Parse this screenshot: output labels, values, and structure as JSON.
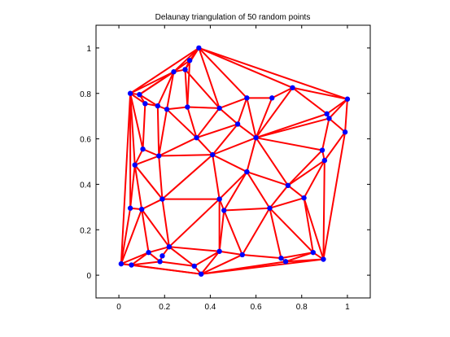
{
  "chart_data": {
    "type": "scatter",
    "title": "Delaunay triangulation of 50 random points",
    "xlabel": "",
    "ylabel": "",
    "xlim": [
      -0.1,
      1.1
    ],
    "ylim": [
      -0.1,
      1.1
    ],
    "xticks": [
      "0",
      "0.2",
      "0.4",
      "0.6",
      "0.8",
      "1"
    ],
    "yticks": [
      "0",
      "0.2",
      "0.4",
      "0.6",
      "0.8",
      "1"
    ],
    "xtick_values": [
      0,
      0.2,
      0.4,
      0.6,
      0.8,
      1
    ],
    "ytick_values": [
      0,
      0.2,
      0.4,
      0.6,
      0.8,
      1
    ],
    "grid": false,
    "colors": {
      "edges": "#ff0000",
      "points": "#0000ff",
      "axes": "#000000"
    },
    "points": [
      [
        0.35,
        1.0
      ],
      [
        0.31,
        0.945
      ],
      [
        0.24,
        0.895
      ],
      [
        0.29,
        0.905
      ],
      [
        0.05,
        0.8
      ],
      [
        0.09,
        0.795
      ],
      [
        0.115,
        0.755
      ],
      [
        0.17,
        0.745
      ],
      [
        0.21,
        0.73
      ],
      [
        0.3,
        0.74
      ],
      [
        0.44,
        0.735
      ],
      [
        0.56,
        0.78
      ],
      [
        0.67,
        0.78
      ],
      [
        0.76,
        0.825
      ],
      [
        0.91,
        0.71
      ],
      [
        0.92,
        0.69
      ],
      [
        1.0,
        0.775
      ],
      [
        0.99,
        0.63
      ],
      [
        0.52,
        0.665
      ],
      [
        0.6,
        0.605
      ],
      [
        0.34,
        0.605
      ],
      [
        0.105,
        0.555
      ],
      [
        0.175,
        0.525
      ],
      [
        0.41,
        0.53
      ],
      [
        0.89,
        0.55
      ],
      [
        0.9,
        0.505
      ],
      [
        0.07,
        0.485
      ],
      [
        0.56,
        0.455
      ],
      [
        0.74,
        0.395
      ],
      [
        0.19,
        0.335
      ],
      [
        0.44,
        0.335
      ],
      [
        0.05,
        0.295
      ],
      [
        0.1,
        0.29
      ],
      [
        0.46,
        0.285
      ],
      [
        0.66,
        0.295
      ],
      [
        0.81,
        0.34
      ],
      [
        0.13,
        0.1
      ],
      [
        0.22,
        0.125
      ],
      [
        0.19,
        0.085
      ],
      [
        0.18,
        0.06
      ],
      [
        0.44,
        0.105
      ],
      [
        0.54,
        0.09
      ],
      [
        0.71,
        0.075
      ],
      [
        0.73,
        0.06
      ],
      [
        0.85,
        0.1
      ],
      [
        0.895,
        0.07
      ],
      [
        0.01,
        0.05
      ],
      [
        0.055,
        0.045
      ],
      [
        0.33,
        0.04
      ],
      [
        0.36,
        0.005
      ]
    ],
    "edges": [
      [
        0,
        1
      ],
      [
        0,
        3
      ],
      [
        0,
        2
      ],
      [
        0,
        10
      ],
      [
        0,
        11
      ],
      [
        0,
        13
      ],
      [
        0,
        16
      ],
      [
        0,
        4
      ],
      [
        1,
        3
      ],
      [
        1,
        2
      ],
      [
        1,
        9
      ],
      [
        2,
        3
      ],
      [
        3,
        9
      ],
      [
        3,
        10
      ],
      [
        2,
        8
      ],
      [
        2,
        7
      ],
      [
        2,
        4
      ],
      [
        2,
        5
      ],
      [
        4,
        5
      ],
      [
        4,
        6
      ],
      [
        4,
        21
      ],
      [
        4,
        26
      ],
      [
        4,
        31
      ],
      [
        4,
        46
      ],
      [
        5,
        6
      ],
      [
        5,
        7
      ],
      [
        5,
        2
      ],
      [
        6,
        7
      ],
      [
        6,
        21
      ],
      [
        7,
        8
      ],
      [
        7,
        22
      ],
      [
        8,
        9
      ],
      [
        8,
        20
      ],
      [
        8,
        22
      ],
      [
        9,
        10
      ],
      [
        9,
        20
      ],
      [
        10,
        11
      ],
      [
        10,
        18
      ],
      [
        10,
        20
      ],
      [
        11,
        12
      ],
      [
        11,
        18
      ],
      [
        11,
        19
      ],
      [
        12,
        13
      ],
      [
        12,
        19
      ],
      [
        13,
        14
      ],
      [
        13,
        16
      ],
      [
        13,
        19
      ],
      [
        14,
        15
      ],
      [
        14,
        16
      ],
      [
        14,
        19
      ],
      [
        15,
        16
      ],
      [
        15,
        17
      ],
      [
        15,
        24
      ],
      [
        15,
        19
      ],
      [
        16,
        17
      ],
      [
        17,
        25
      ],
      [
        17,
        45
      ],
      [
        18,
        19
      ],
      [
        18,
        20
      ],
      [
        18,
        23
      ],
      [
        19,
        23
      ],
      [
        19,
        24
      ],
      [
        19,
        27
      ],
      [
        19,
        28
      ],
      [
        20,
        22
      ],
      [
        20,
        23
      ],
      [
        21,
        22
      ],
      [
        21,
        26
      ],
      [
        22,
        23
      ],
      [
        22,
        26
      ],
      [
        22,
        29
      ],
      [
        23,
        27
      ],
      [
        23,
        29
      ],
      [
        23,
        30
      ],
      [
        24,
        25
      ],
      [
        24,
        28
      ],
      [
        25,
        28
      ],
      [
        25,
        35
      ],
      [
        25,
        45
      ],
      [
        26,
        29
      ],
      [
        26,
        31
      ],
      [
        26,
        32
      ],
      [
        27,
        28
      ],
      [
        27,
        30
      ],
      [
        27,
        33
      ],
      [
        27,
        34
      ],
      [
        28,
        34
      ],
      [
        28,
        35
      ],
      [
        29,
        30
      ],
      [
        29,
        32
      ],
      [
        29,
        37
      ],
      [
        30,
        33
      ],
      [
        30,
        37
      ],
      [
        30,
        40
      ],
      [
        31,
        32
      ],
      [
        31,
        46
      ],
      [
        32,
        36
      ],
      [
        32,
        37
      ],
      [
        32,
        46
      ],
      [
        33,
        34
      ],
      [
        33,
        40
      ],
      [
        33,
        41
      ],
      [
        34,
        35
      ],
      [
        34,
        41
      ],
      [
        34,
        42
      ],
      [
        34,
        44
      ],
      [
        35,
        44
      ],
      [
        35,
        45
      ],
      [
        36,
        37
      ],
      [
        36,
        39
      ],
      [
        36,
        46
      ],
      [
        36,
        47
      ],
      [
        37,
        38
      ],
      [
        37,
        40
      ],
      [
        37,
        48
      ],
      [
        38,
        39
      ],
      [
        39,
        47
      ],
      [
        39,
        48
      ],
      [
        40,
        41
      ],
      [
        40,
        48
      ],
      [
        40,
        49
      ],
      [
        41,
        42
      ],
      [
        41,
        49
      ],
      [
        42,
        43
      ],
      [
        42,
        44
      ],
      [
        43,
        44
      ],
      [
        43,
        49
      ],
      [
        44,
        45
      ],
      [
        45,
        49
      ],
      [
        45,
        43
      ],
      [
        46,
        47
      ],
      [
        47,
        49
      ],
      [
        48,
        49
      ],
      [
        46,
        49
      ]
    ]
  }
}
